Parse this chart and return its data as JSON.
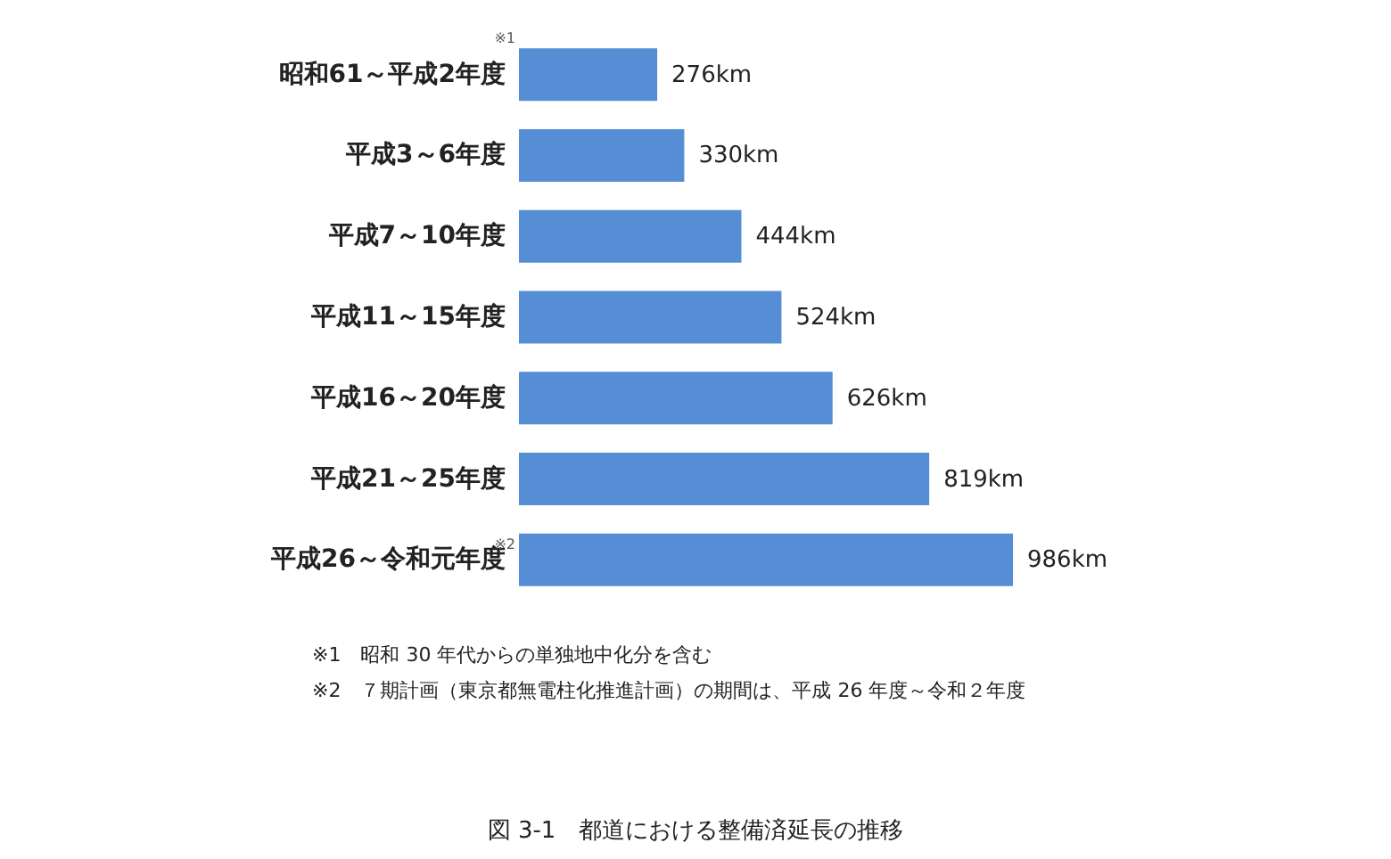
{
  "chart_data": {
    "type": "bar",
    "orientation": "horizontal",
    "title": "図 3-1　都道における整備済延長の推移",
    "categories": [
      "昭和61～平成2年度",
      "平成3～6年度",
      "平成7～10年度",
      "平成11～15年度",
      "平成16～20年度",
      "平成21～25年度",
      "平成26～令和元年度"
    ],
    "values": [
      276,
      330,
      444,
      524,
      626,
      819,
      986
    ],
    "value_labels": [
      "276km",
      "330km",
      "444km",
      "524km",
      "626km",
      "819km",
      "986km"
    ],
    "color": "#558ed5",
    "annotations": [
      "※1",
      "※2",
      "※1　昭和 30 年代からの単独地中化分を含む",
      "※2　７期計画（東京都無電柱化推進計画）の期間は、平成 26 年度～令和２年度"
    ],
    "grid": false
  }
}
